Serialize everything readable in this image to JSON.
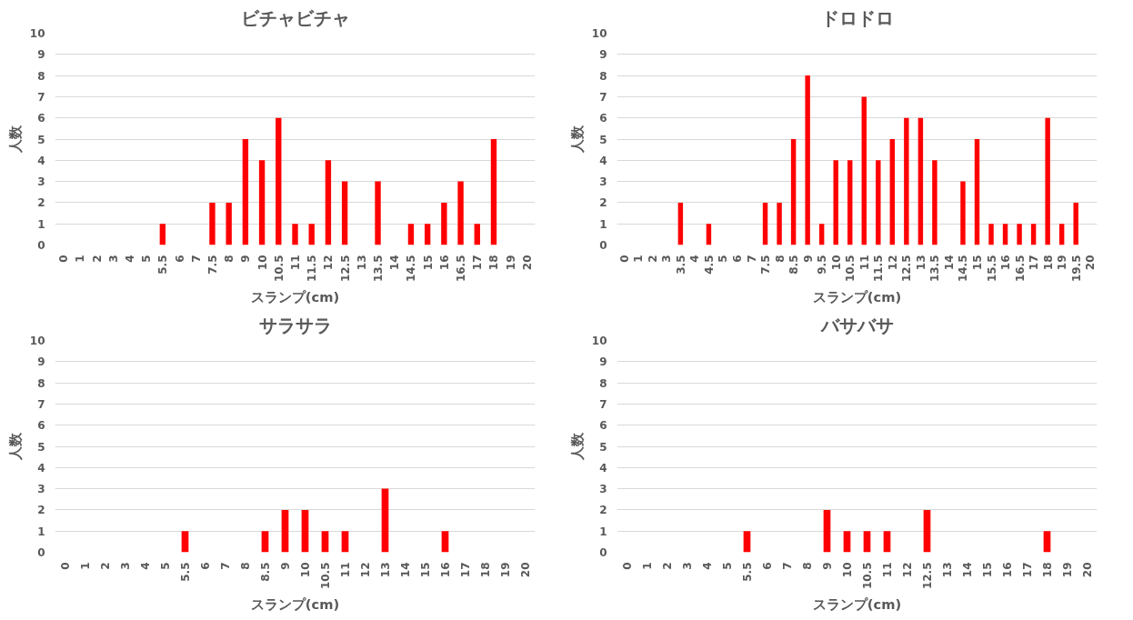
{
  "chart_data": [
    {
      "type": "bar",
      "title": "ビチャビチャ",
      "xlabel": "スランプ(cm)",
      "ylabel": "人数",
      "categories": [
        "0",
        "1",
        "2",
        "3",
        "4",
        "5",
        "5.5",
        "6",
        "7",
        "7.5",
        "8",
        "9",
        "10",
        "10.5",
        "11",
        "11.5",
        "12",
        "12.5",
        "13",
        "13.5",
        "14",
        "14.5",
        "15",
        "16",
        "16.5",
        "17",
        "18",
        "19",
        "20"
      ],
      "values": [
        0,
        0,
        0,
        0,
        0,
        0,
        1,
        0,
        0,
        2,
        2,
        5,
        4,
        6,
        1,
        1,
        4,
        3,
        0,
        3,
        0,
        1,
        1,
        2,
        3,
        1,
        5,
        0,
        0
      ],
      "color": "#ff0000",
      "ylim": [
        0,
        10
      ],
      "yticks": [
        0,
        1,
        2,
        3,
        4,
        5,
        6,
        7,
        8,
        9,
        10
      ],
      "grid": "y"
    },
    {
      "type": "bar",
      "title": "ドロドロ",
      "xlabel": "スランプ(cm)",
      "ylabel": "人数",
      "categories": [
        "0",
        "1",
        "2",
        "3",
        "3.5",
        "4",
        "4.5",
        "5",
        "6",
        "7",
        "7.5",
        "8",
        "8.5",
        "9",
        "9.5",
        "10",
        "10.5",
        "11",
        "11.5",
        "12",
        "12.5",
        "13",
        "13.5",
        "14",
        "14.5",
        "15",
        "15.5",
        "16",
        "16.5",
        "17",
        "18",
        "19",
        "19.5",
        "20"
      ],
      "values": [
        0,
        0,
        0,
        0,
        2,
        0,
        1,
        0,
        0,
        0,
        2,
        2,
        5,
        8,
        1,
        4,
        4,
        7,
        4,
        5,
        6,
        6,
        4,
        0,
        3,
        5,
        1,
        1,
        1,
        1,
        6,
        1,
        2,
        0
      ],
      "color": "#ff0000",
      "ylim": [
        0,
        10
      ],
      "yticks": [
        0,
        1,
        2,
        3,
        4,
        5,
        6,
        7,
        8,
        9,
        10
      ],
      "grid": "y"
    },
    {
      "type": "bar",
      "title": "サラサラ",
      "xlabel": "スランプ(cm)",
      "ylabel": "人数",
      "categories": [
        "0",
        "1",
        "2",
        "3",
        "4",
        "5",
        "5.5",
        "6",
        "7",
        "8",
        "8.5",
        "9",
        "10",
        "10.5",
        "11",
        "12",
        "13",
        "14",
        "15",
        "16",
        "17",
        "18",
        "19",
        "20"
      ],
      "values": [
        0,
        0,
        0,
        0,
        0,
        0,
        1,
        0,
        0,
        0,
        1,
        2,
        2,
        1,
        1,
        0,
        3,
        0,
        0,
        1,
        0,
        0,
        0,
        0
      ],
      "color": "#ff0000",
      "ylim": [
        0,
        10
      ],
      "yticks": [
        0,
        1,
        2,
        3,
        4,
        5,
        6,
        7,
        8,
        9,
        10
      ],
      "grid": "y"
    },
    {
      "type": "bar",
      "title": "バサバサ",
      "xlabel": "スランプ(cm)",
      "ylabel": "人数",
      "categories": [
        "0",
        "1",
        "2",
        "3",
        "4",
        "5",
        "5.5",
        "6",
        "7",
        "8",
        "9",
        "10",
        "10.5",
        "11",
        "12",
        "12.5",
        "13",
        "14",
        "15",
        "16",
        "17",
        "18",
        "19",
        "20"
      ],
      "values": [
        0,
        0,
        0,
        0,
        0,
        0,
        1,
        0,
        0,
        0,
        2,
        1,
        1,
        1,
        0,
        2,
        0,
        0,
        0,
        0,
        0,
        1,
        0,
        0
      ],
      "color": "#ff0000",
      "ylim": [
        0,
        10
      ],
      "yticks": [
        0,
        1,
        2,
        3,
        4,
        5,
        6,
        7,
        8,
        9,
        10
      ],
      "grid": "y"
    }
  ]
}
